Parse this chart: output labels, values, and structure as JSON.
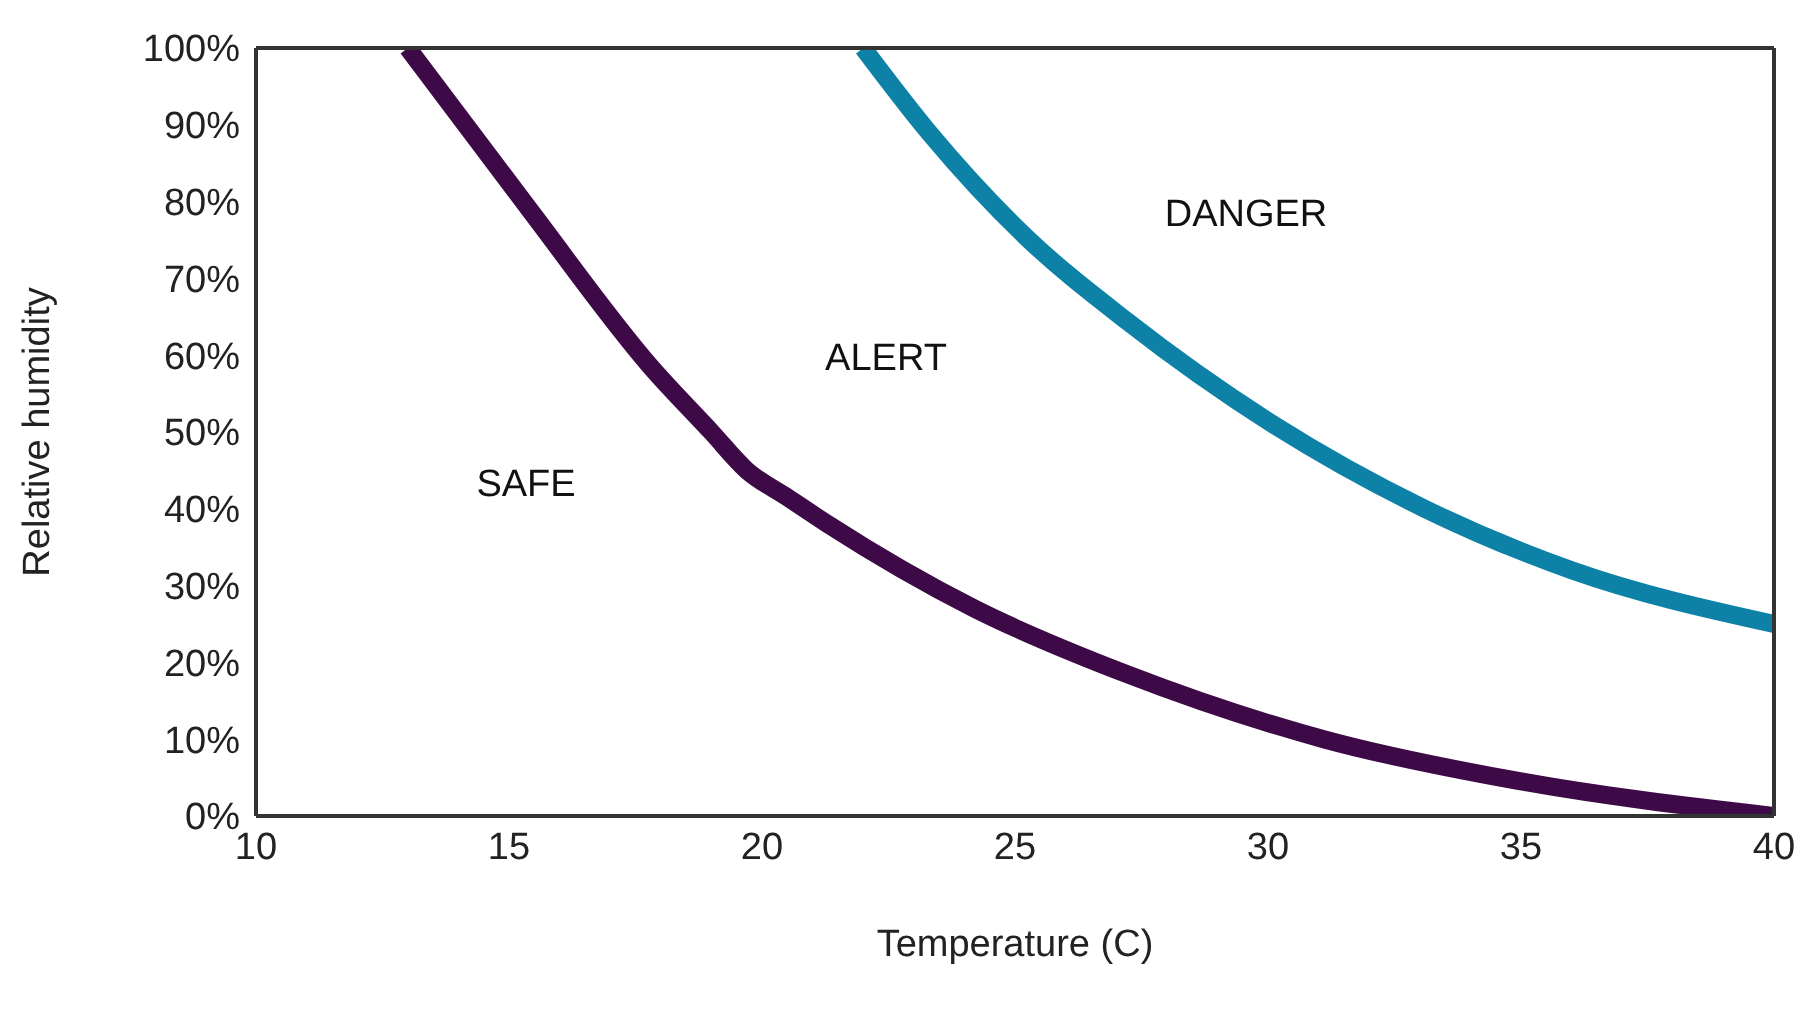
{
  "chart_data": {
    "type": "line",
    "xlabel": "Temperature (C)",
    "ylabel": "Relative humidity",
    "xlim": [
      10,
      40
    ],
    "xticks": [
      10,
      15,
      20,
      25,
      30,
      35,
      40
    ],
    "ylim": [
      0,
      100
    ],
    "yticks": [
      {
        "value": 0,
        "label": "0%"
      },
      {
        "value": 10,
        "label": "10%"
      },
      {
        "value": 20,
        "label": "20%"
      },
      {
        "value": 30,
        "label": "30%"
      },
      {
        "value": 40,
        "label": "40%"
      },
      {
        "value": 50,
        "label": "50%"
      },
      {
        "value": 60,
        "label": "60%"
      },
      {
        "value": 70,
        "label": "70%"
      },
      {
        "value": 80,
        "label": "80%"
      },
      {
        "value": 90,
        "label": "90%"
      },
      {
        "value": 100,
        "label": "100%"
      }
    ],
    "marker": "none",
    "line_style": "solid",
    "series": [
      {
        "color": "#3d0a47",
        "x": [
          13.0,
          15.4,
          17.8,
          19.0,
          19.7,
          20.5,
          21.3,
          24.2,
          27.2,
          31.1,
          35.0,
          40
        ],
        "values": [
          100,
          79,
          58.5,
          50,
          45,
          41.5,
          38,
          27,
          18.5,
          10,
          4.5,
          0
        ]
      },
      {
        "color": "#0e82a6",
        "x": [
          22.0,
          23.3,
          25.2,
          27.2,
          30.1,
          33.1,
          36.0,
          40
        ],
        "values": [
          100,
          89,
          75.5,
          64.5,
          51,
          40,
          32,
          25
        ]
      }
    ],
    "annotations": [
      "DANGER",
      "ALERT",
      "SAFE"
    ]
  }
}
